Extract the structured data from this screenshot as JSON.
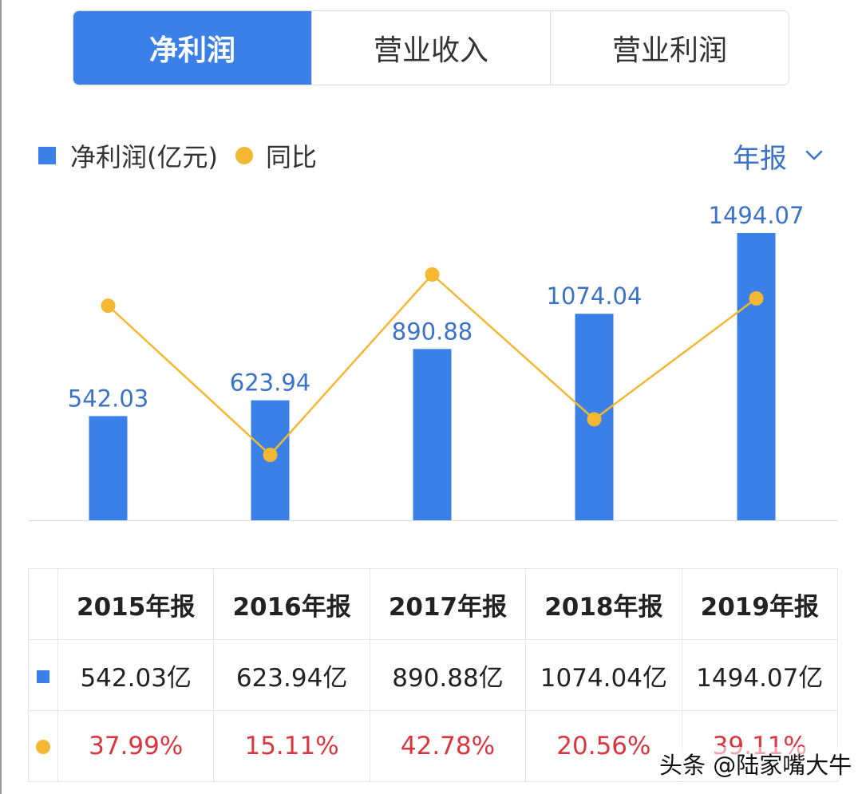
{
  "tabs": [
    {
      "label": "净利润",
      "active": true
    },
    {
      "label": "营业收入",
      "active": false
    },
    {
      "label": "营业利润",
      "active": false
    }
  ],
  "legend": {
    "bar_label": "净利润(亿元)",
    "line_label": "同比"
  },
  "period_selector": {
    "label": "年报",
    "icon": "chevron-down-icon"
  },
  "colors": {
    "accent": "#3b80e6",
    "line": "#f4b732",
    "negative_text": "#d9363e"
  },
  "chart_data": {
    "type": "bar",
    "categories": [
      "2015年报",
      "2016年报",
      "2017年报",
      "2018年报",
      "2019年报"
    ],
    "series": [
      {
        "name": "净利润(亿元)",
        "type": "bar",
        "values": [
          542.03,
          623.94,
          890.88,
          1074.04,
          1494.07
        ]
      },
      {
        "name": "同比",
        "type": "line",
        "values": [
          37.99,
          15.11,
          42.78,
          20.56,
          39.11
        ]
      }
    ],
    "bar_labels": [
      "542.03",
      "623.94",
      "890.88",
      "1074.04",
      "1494.07"
    ],
    "bar_ylim": [
      0,
      1494.07
    ],
    "line_ylim": [
      15.11,
      42.78
    ]
  },
  "table": {
    "headers": [
      "2015年报",
      "2016年报",
      "2017年报",
      "2018年报",
      "2019年报"
    ],
    "values": [
      "542.03亿",
      "623.94亿",
      "890.88亿",
      "1074.04亿",
      "1494.07亿"
    ],
    "yoy": [
      "37.99%",
      "15.11%",
      "42.78%",
      "20.56%",
      "39.11%"
    ]
  },
  "watermark": "头条 @陆家嘴大牛"
}
